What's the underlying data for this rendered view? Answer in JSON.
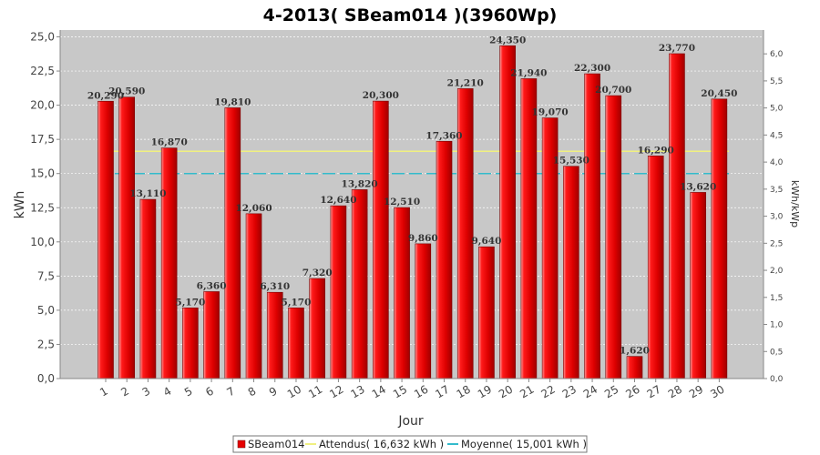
{
  "chart_data": {
    "type": "bar",
    "title": "4-2013( SBeam014 )(3960Wp)",
    "xlabel": "Jour",
    "ylabel": "kWh",
    "ylabel_right": "kWh/kWp",
    "ylim": [
      0,
      25.5
    ],
    "ylim_right": [
      0,
      6.44
    ],
    "yticks": [
      "0,0",
      "2,5",
      "5,0",
      "7,5",
      "10,0",
      "12,5",
      "15,0",
      "17,5",
      "20,0",
      "22,5",
      "25,0"
    ],
    "yticks_right": [
      "0,0",
      "0,5",
      "1,0",
      "1,5",
      "2,0",
      "2,5",
      "3,0",
      "3,5",
      "4,0",
      "4,5",
      "5,0",
      "5,5",
      "6,0"
    ],
    "categories": [
      "1",
      "2",
      "3",
      "4",
      "5",
      "6",
      "7",
      "8",
      "9",
      "10",
      "11",
      "12",
      "13",
      "14",
      "15",
      "16",
      "17",
      "18",
      "19",
      "20",
      "21",
      "22",
      "23",
      "24",
      "25",
      "26",
      "27",
      "28",
      "29",
      "30"
    ],
    "series": [
      {
        "name": "SBeam014",
        "color": "#e60000",
        "values": [
          20.29,
          20.59,
          13.11,
          16.87,
          5.17,
          6.36,
          19.81,
          12.06,
          6.31,
          5.17,
          7.32,
          12.64,
          13.82,
          20.3,
          12.51,
          9.86,
          17.36,
          21.21,
          9.64,
          24.35,
          21.94,
          19.07,
          15.53,
          22.3,
          20.7,
          1.62,
          16.29,
          23.77,
          13.62,
          20.45
        ],
        "labels": [
          "20,290",
          "20,590",
          "13,110",
          "16,870",
          "5,170",
          "6,360",
          "19,810",
          "12,060",
          "6,310",
          "5,170",
          "7,320",
          "12,640",
          "13,820",
          "20,300",
          "12,510",
          "9,860",
          "17,360",
          "21,210",
          "9,640",
          "24,350",
          "21,940",
          "19,070",
          "15,530",
          "22,300",
          "20,700",
          "1,620",
          "16,290",
          "23,770",
          "13,620",
          "20,450"
        ]
      }
    ],
    "reference_lines": [
      {
        "name": "Attendus( 16,632 kWh )",
        "value": 16.632,
        "color": "#f0f080",
        "style": "solid"
      },
      {
        "name": "Moyenne( 15,001 kWh )",
        "value": 15.001,
        "color": "#33bbcc",
        "style": "dashed"
      }
    ],
    "grid": true,
    "legend": "bottom-center",
    "colors": {
      "plot_bg": "#c8c8c8",
      "bar": "#e60000",
      "grid": "#ffffff"
    }
  }
}
